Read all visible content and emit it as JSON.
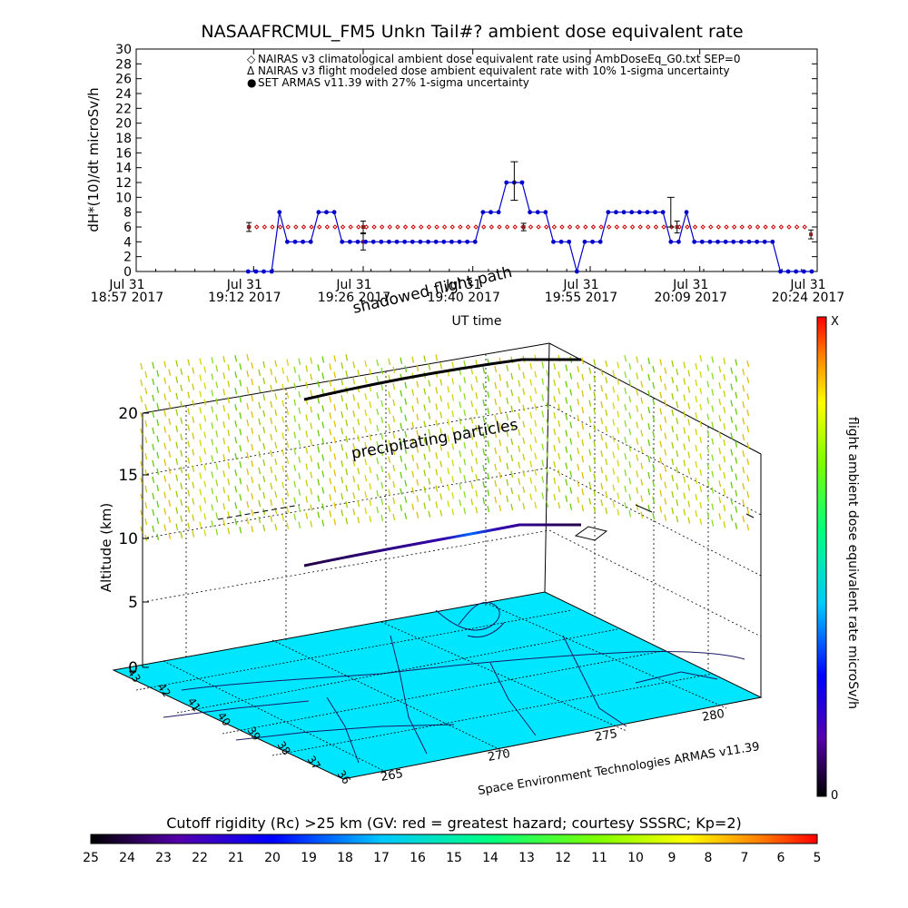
{
  "figure": {
    "title": "NASAAFRCMUL_FM5 Unkn Tail#? ambient dose equivalent rate",
    "vertical_label_3d": "Altitude (km)",
    "right_colorbar_label": "flight ambient dose equivalent rate microSv/h",
    "right_colorbar_max_label": "X",
    "right_colorbar_min_label": "0",
    "annotation_shadow": "shadowed flight path",
    "annotation_particles": "precipitating particles",
    "credit": "Space Environment Technologies ARMAS v11.39",
    "bottom_colorbar_title": "Cutoff rigidity (Rc) >25 km (GV: red = greatest hazard; courtesy SSSRC; Kp=2)",
    "bottom_colorbar_ticks": [
      "25",
      "24",
      "23",
      "22",
      "21",
      "20",
      "19",
      "18",
      "17",
      "16",
      "15",
      "14",
      "13",
      "12",
      "11",
      "10",
      "9",
      "8",
      "7",
      "6",
      "5"
    ],
    "altitude_ticks": [
      "0",
      "5",
      "10",
      "15",
      "20"
    ],
    "lat_ticks": [
      "43",
      "42",
      "41",
      "40",
      "39",
      "38",
      "37",
      "36"
    ],
    "lon_ticks": [
      "265",
      "270",
      "275",
      "280"
    ]
  },
  "chart_data": {
    "type": "line",
    "xlabel": "UT time",
    "ylabel": "dH*(10)/dt microSv/h",
    "ylim": [
      0,
      30
    ],
    "y_ticks": [
      0,
      2,
      4,
      6,
      8,
      10,
      12,
      14,
      16,
      18,
      20,
      22,
      24,
      26,
      28,
      30
    ],
    "x_range_minutes": [
      1137,
      1224
    ],
    "x_ticks": [
      {
        "minute": 1137,
        "line1": "Jul 31",
        "line2": "18:57 2017"
      },
      {
        "minute": 1152,
        "line1": "Jul 31",
        "line2": "19:12 2017"
      },
      {
        "minute": 1166,
        "line1": "Jul 31",
        "line2": "19:26 2017"
      },
      {
        "minute": 1180,
        "line1": "Jul 31",
        "line2": "19:40 2017"
      },
      {
        "minute": 1195,
        "line1": "Jul 31",
        "line2": "19:55 2017"
      },
      {
        "minute": 1209,
        "line1": "Jul 31",
        "line2": "20:09 2017"
      },
      {
        "minute": 1224,
        "line1": "Jul 31",
        "line2": "20:24 2017"
      }
    ],
    "legend": [
      {
        "symbol": "◇",
        "color": "#cc0000",
        "text": "NAIRAS v3 climatological ambient dose equivalent rate using AmbDoseEq_G0.txt SEP=0"
      },
      {
        "symbol": "Δ",
        "color": "#000000",
        "text": "NAIRAS v3 flight modeled dose ambient equivalent rate with 10% 1-sigma uncertainty"
      },
      {
        "symbol": "●",
        "color": "#0000cc",
        "text": "SET ARMAS v11.39 with 27% 1-sigma uncertainty"
      }
    ],
    "series": [
      {
        "name": "NAIRAS v3 climatological ambient dose equivalent rate using AmbDoseEq_G0.txt SEP=0",
        "style": "diamond-dotted",
        "color": "#cc0000",
        "x_start": 1151.4,
        "x_end": 1223.2,
        "value": 6
      },
      {
        "name": "NAIRAS v3 flight modeled dose ambient equivalent rate with 10% 1-sigma uncertainty",
        "style": "errorbar",
        "color": "#000000",
        "points": [
          {
            "x": 1151.4,
            "y": 6,
            "lo": 5.4,
            "hi": 6.6
          },
          {
            "x": 1166.0,
            "y": 6,
            "lo": 5.2,
            "hi": 6.8
          },
          {
            "x": 1166.0,
            "y": 4,
            "lo": 2.9,
            "hi": 5.1
          },
          {
            "x": 1186.5,
            "y": 6,
            "lo": 5.5,
            "hi": 6.5
          },
          {
            "x": 1206.1,
            "y": 6,
            "lo": 5.2,
            "hi": 6.8
          },
          {
            "x": 1223.2,
            "y": 5,
            "lo": 4.4,
            "hi": 5.6
          }
        ]
      },
      {
        "name": "SET ARMAS v11.39 with 27% 1-sigma uncertainty",
        "style": "line-dots",
        "color": "#0000cc",
        "x": [
          1151.3,
          1152.3,
          1153.3,
          1154.3,
          1155.3,
          1156.3,
          1157.3,
          1158.3,
          1159.3,
          1160.3,
          1161.3,
          1162.3,
          1163.3,
          1164.3,
          1165.3,
          1166.3,
          1167.3,
          1168.3,
          1169.3,
          1170.3,
          1171.3,
          1172.3,
          1173.3,
          1174.3,
          1175.3,
          1176.3,
          1177.3,
          1178.3,
          1179.3,
          1180.3,
          1181.3,
          1182.3,
          1183.3,
          1184.3,
          1185.3,
          1186.3,
          1187.3,
          1188.3,
          1189.3,
          1190.3,
          1191.3,
          1192.3,
          1193.3,
          1194.3,
          1195.3,
          1196.3,
          1197.3,
          1198.3,
          1199.3,
          1200.3,
          1201.3,
          1202.3,
          1203.3,
          1204.3,
          1205.3,
          1206.3,
          1207.3,
          1208.3,
          1209.3,
          1210.3,
          1211.3,
          1212.3,
          1213.3,
          1214.3,
          1215.3,
          1216.3,
          1217.3,
          1218.3,
          1219.3,
          1220.3,
          1221.3,
          1222.3,
          1223.3
        ],
        "values": [
          0,
          0,
          0,
          0,
          8,
          4,
          4,
          4,
          4,
          8,
          8,
          8,
          4,
          4,
          4,
          4,
          4,
          4,
          4,
          4,
          4,
          4,
          4,
          4,
          4,
          4,
          4,
          4,
          4,
          4,
          8,
          8,
          8,
          12,
          12,
          12,
          8,
          8,
          8,
          4,
          4,
          4,
          0,
          4,
          4,
          4,
          8,
          8,
          8,
          8,
          8,
          8,
          8,
          8,
          4,
          4,
          8,
          4,
          4,
          4,
          4,
          4,
          4,
          4,
          4,
          4,
          4,
          4,
          0,
          0,
          0,
          0,
          0
        ],
        "error_bars": [
          {
            "x": 1185.3,
            "lo": 9.6,
            "hi": 14.8
          },
          {
            "x": 1205.3,
            "lo": 6.0,
            "hi": 10.0
          }
        ]
      }
    ]
  },
  "colors": {
    "map_surface": "#00e6ff",
    "armas_marker": "#0000cc",
    "nairas_clim": "#cc0000"
  }
}
